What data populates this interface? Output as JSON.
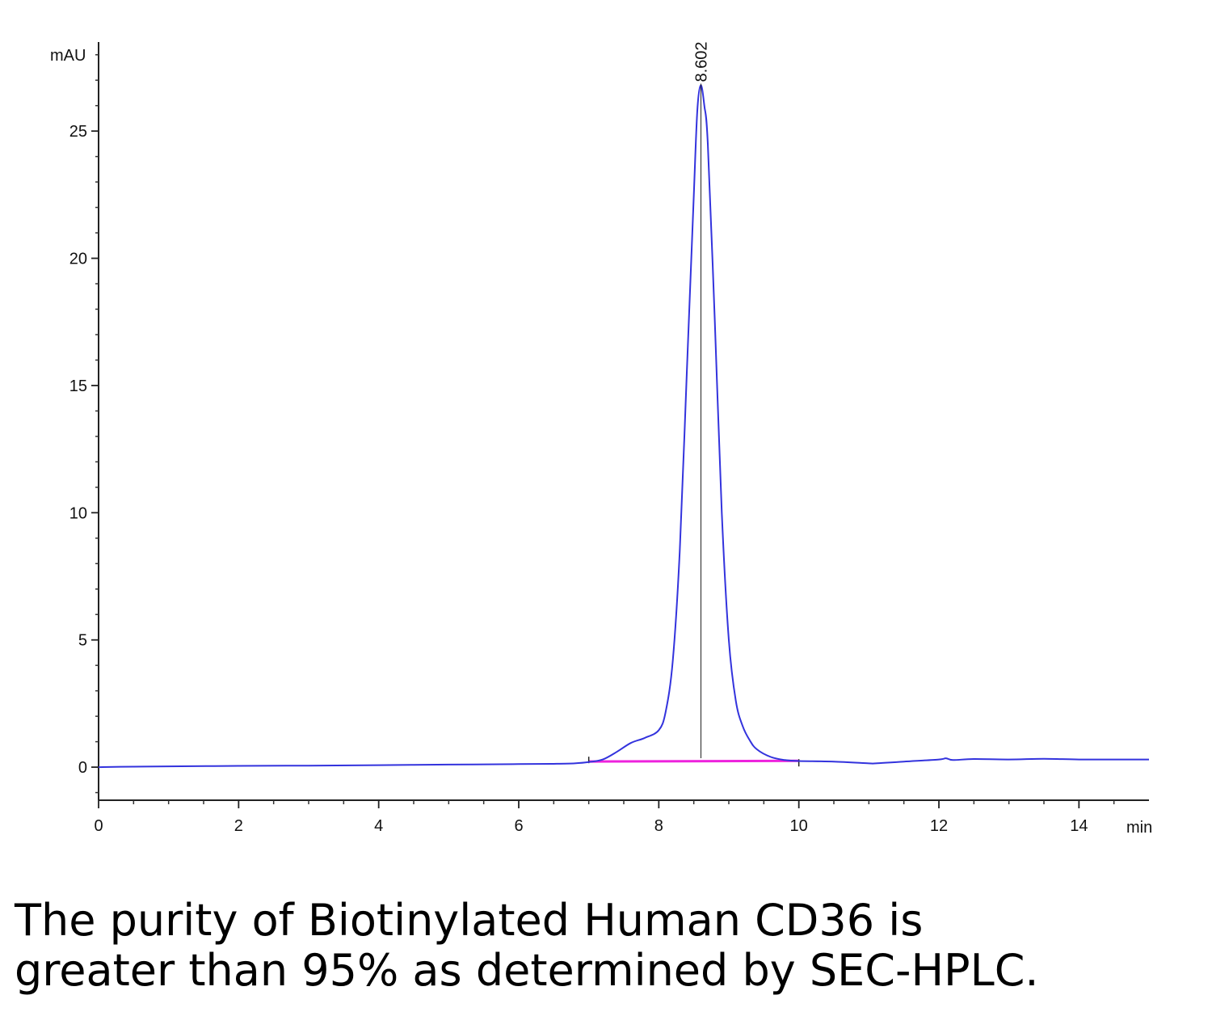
{
  "chart_data": {
    "type": "line",
    "ylabel": "mAU",
    "xlabel": "min",
    "xlim": [
      0,
      15
    ],
    "ylim": [
      -1.3,
      28.5
    ],
    "x_ticks": [
      0,
      2,
      4,
      6,
      8,
      10,
      12,
      14
    ],
    "y_ticks": [
      0,
      5,
      10,
      15,
      20,
      25
    ],
    "peak_label": "8.602",
    "peak_x": 8.602,
    "peak_y": 26.8,
    "trace_color": "#3333dd",
    "baseline_color": "#ee22dd",
    "baseline": {
      "x": [
        7.0,
        10.0
      ],
      "y": [
        0.22,
        0.25
      ]
    },
    "series": [
      {
        "values_x": [
          0,
          0.5,
          1,
          2,
          3,
          4,
          5,
          6,
          6.5,
          6.8,
          7.0,
          7.2,
          7.4,
          7.6,
          7.8,
          8.0,
          8.1,
          8.2,
          8.3,
          8.4,
          8.5,
          8.55,
          8.6,
          8.65,
          8.7,
          8.8,
          8.9,
          9.0,
          9.1,
          9.2,
          9.3,
          9.4,
          9.6,
          9.8,
          10.0,
          10.5,
          11.0,
          11.1,
          11.5,
          12.0,
          12.1,
          12.2,
          12.5,
          13.0,
          13.5,
          14.0,
          14.5,
          15.0
        ],
        "values_y": [
          0.0,
          0.02,
          0.03,
          0.05,
          0.06,
          0.08,
          0.1,
          0.12,
          0.13,
          0.15,
          0.2,
          0.3,
          0.6,
          0.95,
          1.15,
          1.45,
          2.2,
          4.2,
          8.5,
          15.5,
          22.5,
          25.8,
          26.8,
          26.0,
          24.5,
          17.5,
          10.0,
          5.0,
          2.6,
          1.6,
          1.05,
          0.7,
          0.4,
          0.28,
          0.24,
          0.22,
          0.15,
          0.15,
          0.22,
          0.3,
          0.35,
          0.28,
          0.32,
          0.3,
          0.33,
          0.3,
          0.3,
          0.3
        ]
      }
    ]
  },
  "caption": {
    "line1": "The purity of Biotinylated Human CD36 is",
    "line2": "greater than 95% as determined by SEC-HPLC."
  }
}
